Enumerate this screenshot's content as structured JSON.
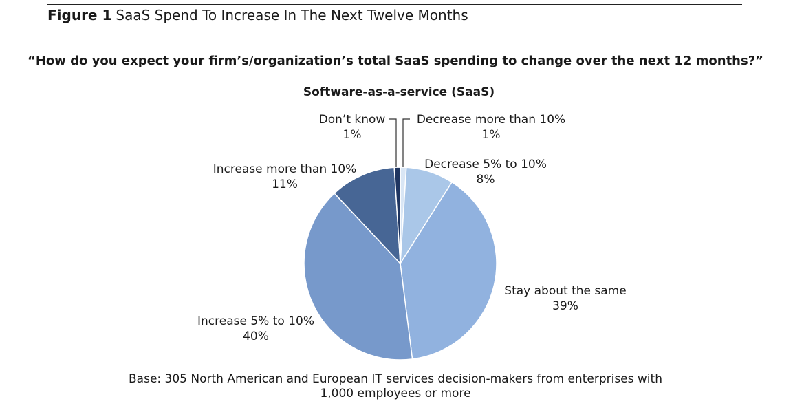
{
  "figure": {
    "number": "Figure 1",
    "title": "SaaS Spend To Increase In The Next Twelve Months"
  },
  "question": "“How do you expect your firm’s/organization’s total SaaS spending to change over the next 12 months?”",
  "footnote": {
    "line1": "Base: 305 North American and European IT services decision-makers from enterprises with",
    "line2": "1,000 employees or more"
  },
  "chart_data": {
    "type": "pie",
    "title": "Software-as-a-service (SaaS)",
    "start_angle": "12 o'clock, clockwise",
    "slices": [
      {
        "label": "Decrease more than 10%",
        "value": 1,
        "display": "1%",
        "color": "#d9e6f5"
      },
      {
        "label": "Decrease 5% to 10%",
        "value": 8,
        "display": "8%",
        "color": "#aac7e8"
      },
      {
        "label": "Stay about the same",
        "value": 39,
        "display": "39%",
        "color": "#91b2df"
      },
      {
        "label": "Increase 5% to 10%",
        "value": 40,
        "display": "40%",
        "color": "#7799cb"
      },
      {
        "label": "Increase more than 10%",
        "value": 11,
        "display": "11%",
        "color": "#476695"
      },
      {
        "label": "Don’t know",
        "value": 1,
        "display": "1%",
        "color": "#1f3560"
      }
    ]
  }
}
